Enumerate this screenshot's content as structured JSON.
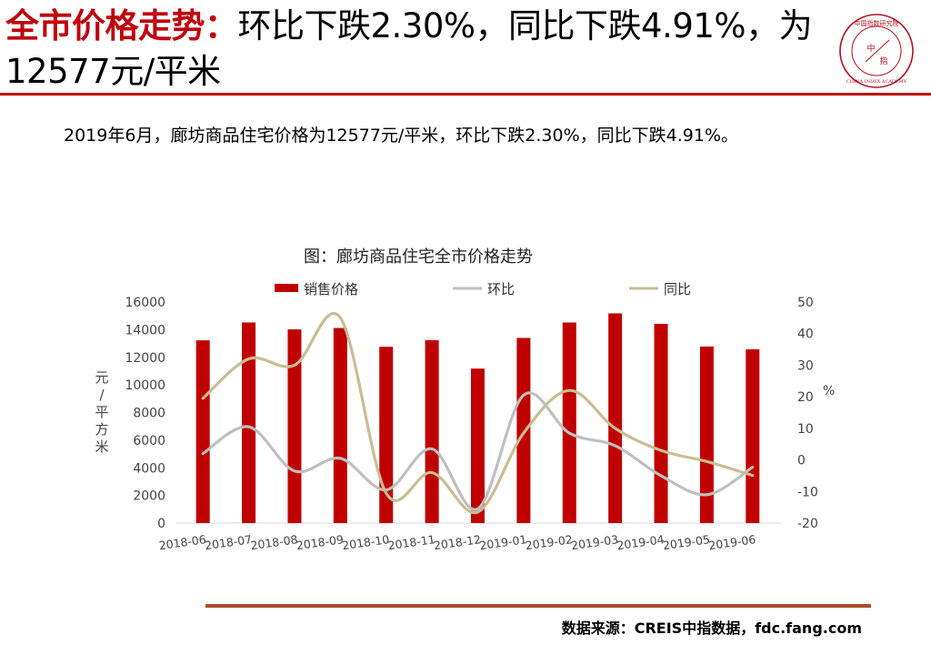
{
  "header": {
    "title_highlight": "全市价格走势：",
    "title_rest": "环比下跌2.30%，同比下跌4.91%，为12577元/平米"
  },
  "logo": {
    "text_top": "中国指数研究院",
    "text_bottom": "CHINA INDEX ACADEMY",
    "center_top": "中",
    "center_bottom": "指",
    "color": "#b01020"
  },
  "summary": "2019年6月，廊坊商品住宅价格为12577元/平米，环比下跌2.30%，同比下跌4.91%。",
  "footer": {
    "source": "数据来源：CREIS中指数据，fdc.fang.com"
  },
  "chart_data": {
    "type": "bar+line",
    "title": "图：廊坊商品住宅全市价格走势",
    "categories": [
      "2018-06",
      "2018-07",
      "2018-08",
      "2018-09",
      "2018-10",
      "2018-11",
      "2018-12",
      "2019-01",
      "2019-02",
      "2019-03",
      "2019-04",
      "2019-05",
      "2019-06"
    ],
    "series": [
      {
        "name": "销售价格",
        "type": "bar",
        "axis": "left",
        "color": "#c00000",
        "values": [
          13230,
          14520,
          14020,
          14120,
          12760,
          13240,
          11180,
          13400,
          14520,
          15180,
          14420,
          12780,
          12577
        ]
      },
      {
        "name": "环比",
        "type": "line",
        "axis": "right",
        "color": "#bfbfbf",
        "values": [
          2.0,
          10.5,
          -3.5,
          0.5,
          -9.5,
          3.5,
          -15.5,
          20.5,
          8.5,
          4.5,
          -5.0,
          -11.0,
          -2.3
        ]
      },
      {
        "name": "同比",
        "type": "line",
        "axis": "right",
        "color": "#c9bd94",
        "values": [
          19.5,
          32.0,
          30.0,
          45.0,
          -10.5,
          -4.0,
          -16.5,
          8.5,
          22.0,
          10.0,
          3.0,
          -0.5,
          -4.91
        ]
      }
    ],
    "y_left": {
      "min": 0,
      "max": 16000,
      "ticks": [
        0,
        2000,
        4000,
        6000,
        8000,
        10000,
        12000,
        14000,
        16000
      ],
      "label": "元/平方米"
    },
    "y_right": {
      "min": -20,
      "max": 50,
      "ticks": [
        -20,
        -10,
        0,
        10,
        20,
        30,
        40,
        50
      ],
      "label": "%"
    },
    "legend_position": "top",
    "grid": false
  }
}
